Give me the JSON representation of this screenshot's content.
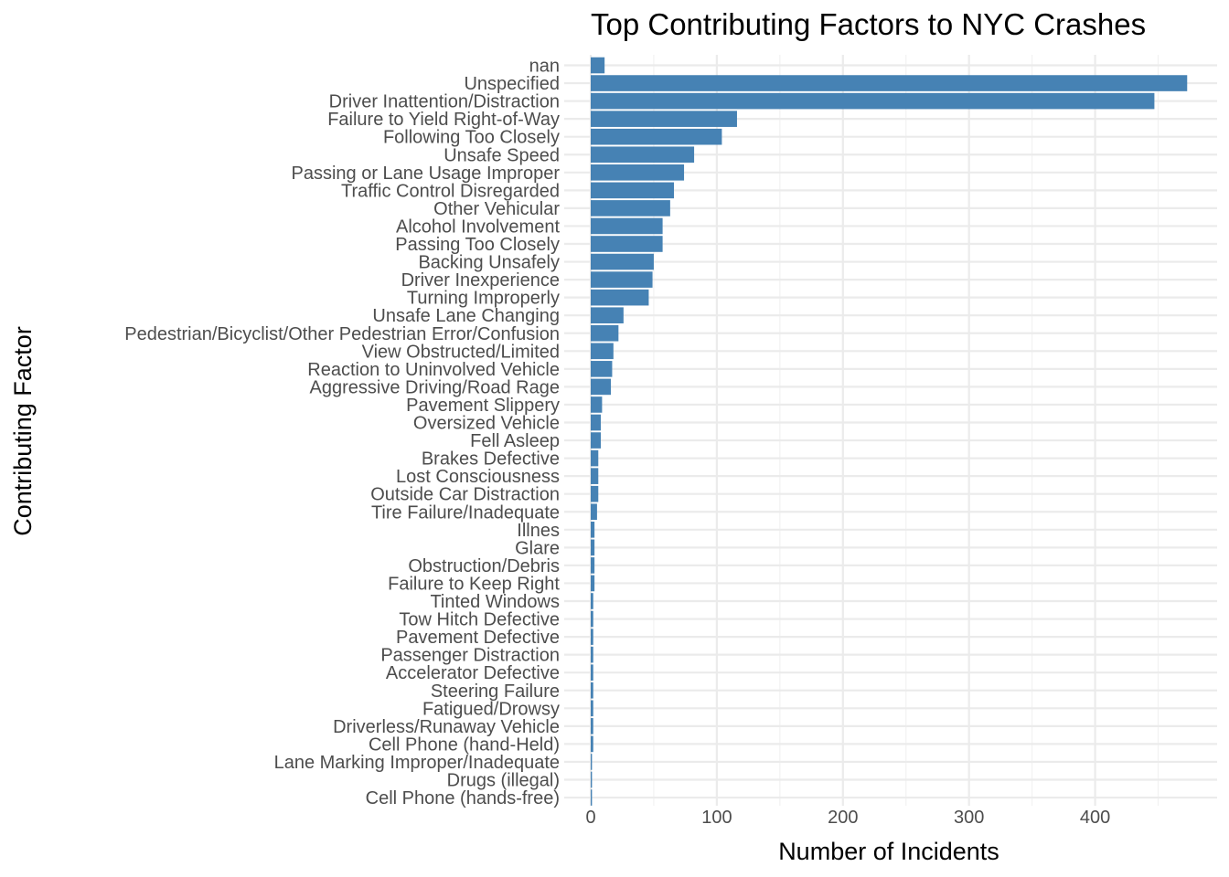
{
  "chart_data": {
    "type": "bar",
    "orientation": "horizontal",
    "title": "Top Contributing Factors to NYC Crashes",
    "xlabel": "Number of Incidents",
    "ylabel": "Contributing Factor",
    "xlim": [
      0,
      500
    ],
    "xticks": [
      0,
      100,
      200,
      300,
      400
    ],
    "grid": true,
    "bar_color": "#4682B4",
    "categories": [
      "nan",
      "Unspecified",
      "Driver Inattention/Distraction",
      "Failure to Yield Right-of-Way",
      "Following Too Closely",
      "Unsafe Speed",
      "Passing or Lane Usage Improper",
      "Traffic Control Disregarded",
      "Other Vehicular",
      "Alcohol Involvement",
      "Passing Too Closely",
      "Backing Unsafely",
      "Driver Inexperience",
      "Turning Improperly",
      "Unsafe Lane Changing",
      "Pedestrian/Bicyclist/Other Pedestrian Error/Confusion",
      "View Obstructed/Limited",
      "Reaction to Uninvolved Vehicle",
      "Aggressive Driving/Road Rage",
      "Pavement Slippery",
      "Oversized Vehicle",
      "Fell Asleep",
      "Brakes Defective",
      "Lost Consciousness",
      "Outside Car Distraction",
      "Tire Failure/Inadequate",
      "Illnes",
      "Glare",
      "Obstruction/Debris",
      "Failure to Keep Right",
      "Tinted Windows",
      "Tow Hitch Defective",
      "Pavement Defective",
      "Passenger Distraction",
      "Accelerator Defective",
      "Steering Failure",
      "Fatigued/Drowsy",
      "Driverless/Runaway Vehicle",
      "Cell Phone (hand-Held)",
      "Lane Marking Improper/Inadequate",
      "Drugs (illegal)",
      "Cell Phone (hands-free)"
    ],
    "values": [
      11,
      473,
      447,
      116,
      104,
      82,
      74,
      66,
      63,
      57,
      57,
      50,
      49,
      46,
      26,
      22,
      18,
      17,
      16,
      9,
      8,
      8,
      6,
      6,
      6,
      5,
      3,
      3,
      3,
      3,
      2,
      2,
      2,
      2,
      2,
      2,
      2,
      2,
      2,
      1,
      1,
      1
    ]
  }
}
